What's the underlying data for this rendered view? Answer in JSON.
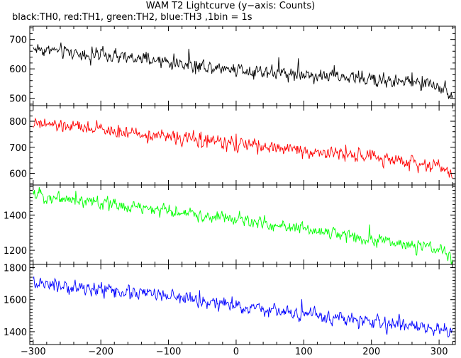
{
  "title": "WAM T2 Lightcurve (y−axis: Counts)",
  "subtitle": "black:TH0, red:TH1, green:TH2, blue:TH3 ,1bin = 1s",
  "chart_data": [
    {
      "type": "line",
      "name": "TH0",
      "color": "#000000",
      "x_range": [
        -305,
        324
      ],
      "ylim": [
        475,
        745
      ],
      "y_ticks": [
        500,
        600,
        700
      ],
      "trend": {
        "x": [
          -300,
          -200,
          -100,
          0,
          100,
          200,
          300,
          318
        ],
        "y": [
          670,
          645,
          622,
          600,
          582,
          565,
          545,
          520
        ]
      },
      "noise_amplitude": 26
    },
    {
      "type": "line",
      "name": "TH1",
      "color": "#ff0000",
      "x_range": [
        -305,
        324
      ],
      "ylim": [
        555,
        860
      ],
      "y_ticks": [
        600,
        700,
        800
      ],
      "trend": {
        "x": [
          -300,
          -200,
          -100,
          0,
          100,
          200,
          300,
          318
        ],
        "y": [
          790,
          768,
          740,
          712,
          688,
          662,
          628,
          600
        ]
      },
      "noise_amplitude": 28
    },
    {
      "type": "line",
      "name": "TH2",
      "color": "#00ff00",
      "x_range": [
        -305,
        324
      ],
      "ylim": [
        1120,
        1570
      ],
      "y_ticks": [
        1200,
        1400
      ],
      "trend": {
        "x": [
          -300,
          -200,
          -100,
          0,
          100,
          200,
          300,
          318
        ],
        "y": [
          1515,
          1470,
          1420,
          1375,
          1320,
          1265,
          1200,
          1160
        ]
      },
      "noise_amplitude": 40
    },
    {
      "type": "line",
      "name": "TH3",
      "color": "#0000ff",
      "x_range": [
        -305,
        324
      ],
      "ylim": [
        1320,
        1820
      ],
      "y_ticks": [
        1400,
        1600,
        1800
      ],
      "trend": {
        "x": [
          -300,
          -200,
          -100,
          0,
          100,
          200,
          300,
          318
        ],
        "y": [
          1695,
          1665,
          1620,
          1560,
          1510,
          1460,
          1415,
          1390
        ]
      },
      "noise_amplitude": 48
    }
  ],
  "x_axis": {
    "ticks": [
      -300,
      -200,
      -100,
      0,
      100,
      200,
      300
    ],
    "tick_labels": [
      "−300",
      "−200",
      "−100",
      "0",
      "100",
      "200",
      "300"
    ],
    "minor_step": 20
  }
}
